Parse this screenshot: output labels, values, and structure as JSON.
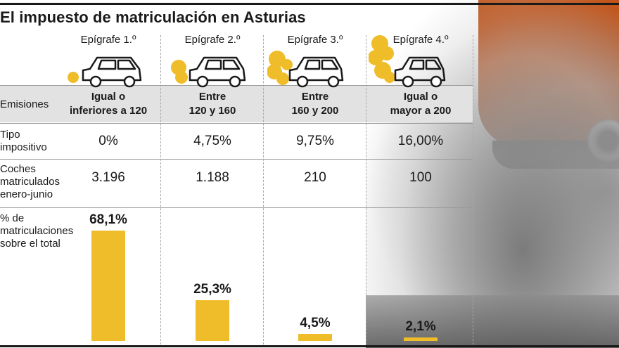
{
  "title": "El impuesto de matriculación en Asturias",
  "colors": {
    "bar": "#f0bd2a",
    "smoke": "#f0bd2a",
    "grid": "#9a9a9a",
    "emissions_row_bg": "#e2e2e2"
  },
  "icons": [
    "car-exhaust-icon"
  ],
  "row_labels": {
    "emisiones": "Emisiones",
    "tipo": [
      "Tipo",
      "impositivo"
    ],
    "coches": [
      "Coches",
      "matriculados",
      "enero-junio"
    ],
    "porcentaje": [
      "% de",
      "matriculaciones",
      "sobre el total"
    ]
  },
  "chart_data": {
    "type": "bar",
    "title": "El impuesto de matriculación en Asturias",
    "categories": [
      "Epígrafe 1.º",
      "Epígrafe 2.º",
      "Epígrafe 3.º",
      "Epígrafe 4.º"
    ],
    "emisiones": [
      [
        "Igual o",
        "inferiores a 120"
      ],
      [
        "Entre",
        "120 y 160"
      ],
      [
        "Entre",
        "160 y 200"
      ],
      [
        "Igual o",
        "mayor a 200"
      ]
    ],
    "tipo_impositivo": [
      "0%",
      "4,75%",
      "9,75%",
      "16,00%"
    ],
    "coches_matriculados": [
      "3.196",
      "1.188",
      "210",
      "100"
    ],
    "series": [
      {
        "values": [
          68.1,
          25.3,
          4.5,
          2.1
        ]
      }
    ],
    "value_labels": [
      "68,1%",
      "25,3%",
      "4,5%",
      "2,1%"
    ],
    "ylim": [
      0,
      68.1
    ],
    "grid": false,
    "legend": "none"
  }
}
